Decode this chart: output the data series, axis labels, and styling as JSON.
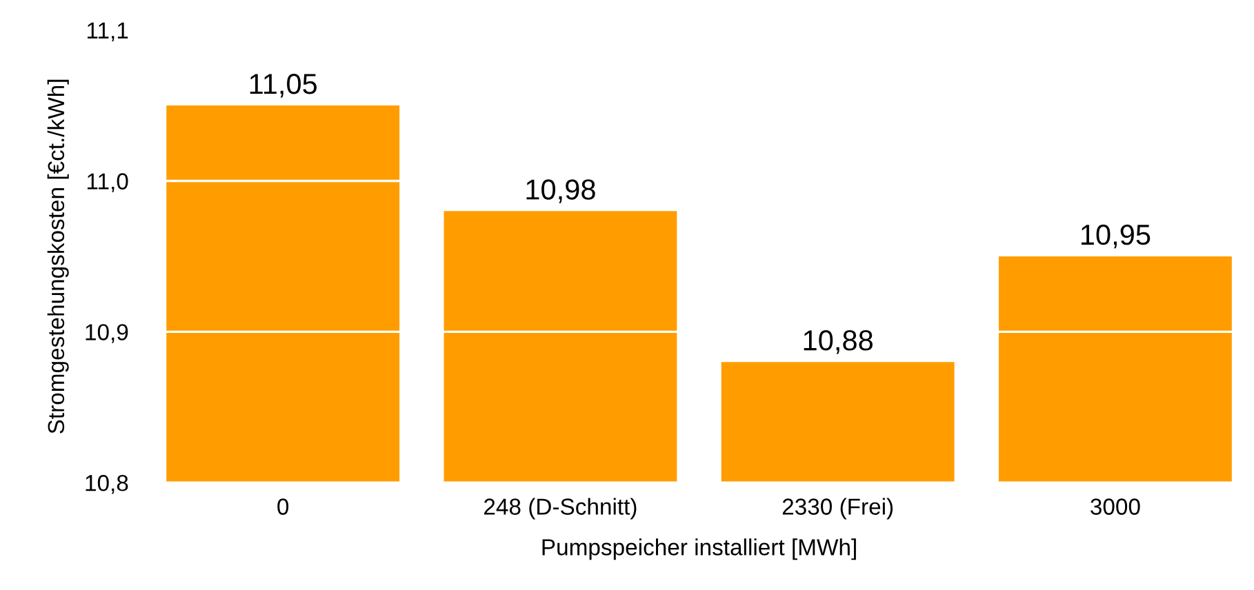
{
  "chart_data": {
    "type": "bar",
    "categories": [
      "0",
      "248 (D-Schnitt)",
      "2330 (Frei)",
      "3000"
    ],
    "values": [
      11.05,
      10.98,
      10.88,
      10.95
    ],
    "value_labels": [
      "11,05",
      "10,98",
      "10,88",
      "10,95"
    ],
    "color": "#ff9d00",
    "xlabel": "Pumpspeicher installiert [MWh]",
    "ylabel": "Stromgestehungskosten [€ct./kWh]",
    "ylim": [
      10.8,
      11.1
    ],
    "yticks": [
      {
        "value": 10.8,
        "label": "10,8"
      },
      {
        "value": 10.9,
        "label": "10,9"
      },
      {
        "value": 11.0,
        "label": "11,0"
      },
      {
        "value": 11.1,
        "label": "11,1"
      }
    ],
    "grid": "y"
  }
}
